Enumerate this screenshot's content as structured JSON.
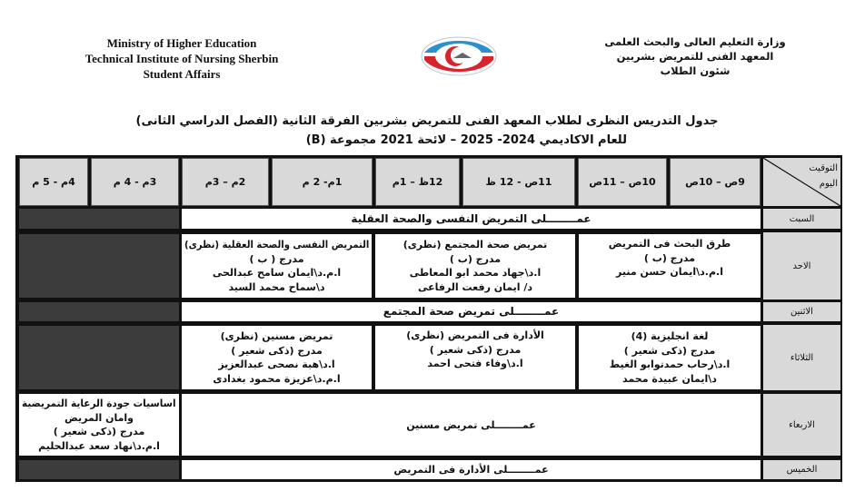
{
  "header": {
    "english": [
      "Ministry of Higher Education",
      "Technical Institute of Nursing Sherbin",
      "Student Affairs"
    ],
    "arabic": [
      "وزارة التعليم العالى والبحث العلمى",
      "المعهد الفنى للتمريض بشربين",
      "شئون الطلاب"
    ],
    "logo": "institute-logo"
  },
  "title": {
    "line1": "جدول التدريس النظرى لطلاب المعهد الفنى للتمريض بشربين الفرقة الثانية (الفصل الدراسي الثانى)",
    "line2": "للعام الاكاديمي 2024- 2025 – لائحة 2021 مجموعة (B)"
  },
  "table": {
    "corner": {
      "time": "التوقيت",
      "day": "اليوم"
    },
    "times": [
      "9ص – 10ص",
      "10ص – 11ص",
      "11ص - 12 ظ",
      "12ظ – 1م",
      "1م- 2 م",
      "2م – 3م",
      "3م - 4 م",
      "4م - 5 م"
    ],
    "days": [
      "السبت",
      "الاحد",
      "الاثنين",
      "الثلاثاء",
      "الاربعاء",
      "الخميس"
    ],
    "saturday": "عمــــــــلى التمريض النفسى والصحة العقلية",
    "sunday": [
      [
        "طرق البحث فى التمريض",
        "مدرج (ب )",
        "ا.م.د\\ايمان حسن منير"
      ],
      [
        "تمريض صحة المجتمع (نظرى)",
        "مدرج (ب )",
        "ا.د\\جهاد محمد ابو المعاطى",
        "د/ ايمان رفعت الرفاعى"
      ],
      [
        "التمريض النفسى والصحة العقلية (نظرى)",
        "مدرج ( ب )",
        "ا.م.د\\ايمان سامح عبدالحى",
        "د\\سماح محمد السيد"
      ]
    ],
    "monday": "عمــــــــلى تمريض صحة المجتمع",
    "tuesday": [
      [
        "لغة انجليزية (4)",
        "مدرج (ذكى شعير )",
        "ا.د\\رحاب حمدتوابو الغيط",
        "د\\ايمان عبيدة محمد"
      ],
      [
        "الأدارة فى التمريض (نظرى)",
        "مدرج (ذكى شعير )",
        "ا.د\\وفاء فتحى احمد"
      ],
      [
        "تمريض مسنين (نظرى)",
        "مدرج (ذكى شعير )",
        "ا.د\\هبة نصحى عبدالعزيز",
        "ا.م.د\\عزيزة محمود بغدادى"
      ]
    ],
    "wednesday": {
      "practical": "عمــــــــلى تمريض مسنين",
      "late": [
        "اساسيات جودة الرعاية التمريضية",
        "وامان المريض",
        "مدرج (ذكى شعير )",
        "ا.م.د\\نهاد سعد عبدالحليم"
      ]
    },
    "thursday": "عمــــــــلى الأدارة فى التمريض"
  }
}
